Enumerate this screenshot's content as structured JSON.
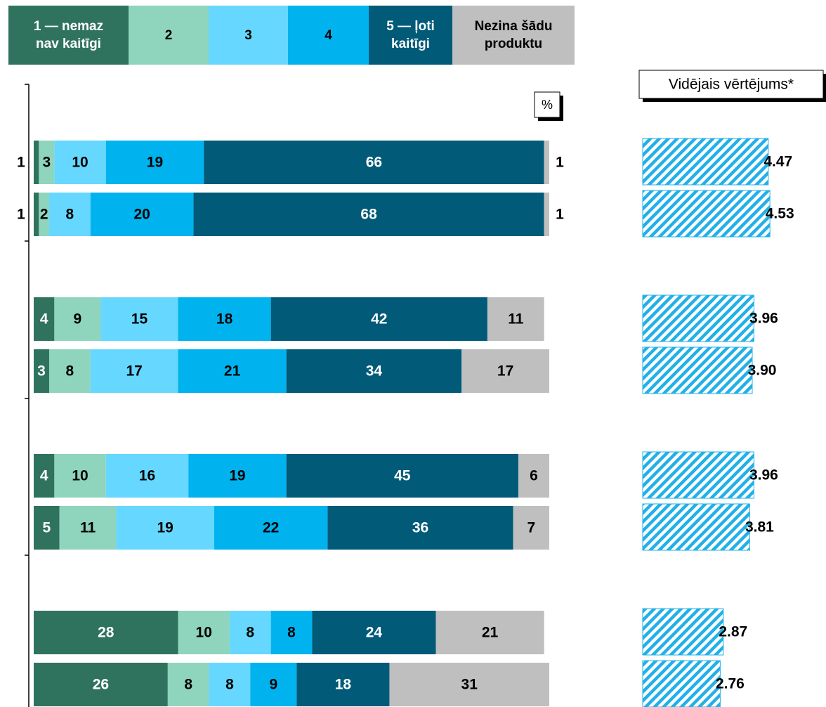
{
  "chart_data": [
    {
      "type": "bar",
      "orientation": "horizontal",
      "stacked": true,
      "annotation": "%",
      "xlim": [
        0,
        100
      ],
      "series": [
        {
          "name": "1 — nemaz nav kaitīgi",
          "color": "#2f735f",
          "values": [
            1,
            1,
            4,
            3,
            4,
            5,
            28,
            26
          ]
        },
        {
          "name": "2",
          "color": "#8fd4bd",
          "values": [
            3,
            2,
            9,
            8,
            10,
            11,
            10,
            8
          ]
        },
        {
          "name": "3",
          "color": "#66d7ff",
          "values": [
            10,
            8,
            15,
            17,
            16,
            19,
            8,
            8
          ]
        },
        {
          "name": "4",
          "color": "#00b3ef",
          "values": [
            19,
            20,
            18,
            21,
            19,
            22,
            8,
            9
          ]
        },
        {
          "name": "5 — ļoti kaitīgi",
          "color": "#005a78",
          "values": [
            66,
            68,
            42,
            34,
            45,
            36,
            24,
            18
          ]
        },
        {
          "name": "Nezina šādu produktu",
          "color": "#bfbfbf",
          "values": [
            1,
            1,
            11,
            17,
            6,
            7,
            21,
            31
          ]
        }
      ]
    },
    {
      "type": "bar",
      "orientation": "horizontal",
      "title": "Vidējais vērtējums*",
      "color": "#22b0e8",
      "xlim": [
        0,
        5
      ],
      "values": [
        4.47,
        4.53,
        3.96,
        3.9,
        3.96,
        3.81,
        2.87,
        2.76
      ],
      "value_labels": [
        "4.47",
        "4.53",
        "3.96",
        "3.90",
        "3.96",
        "3.81",
        "2.87",
        "2.76"
      ]
    }
  ]
}
